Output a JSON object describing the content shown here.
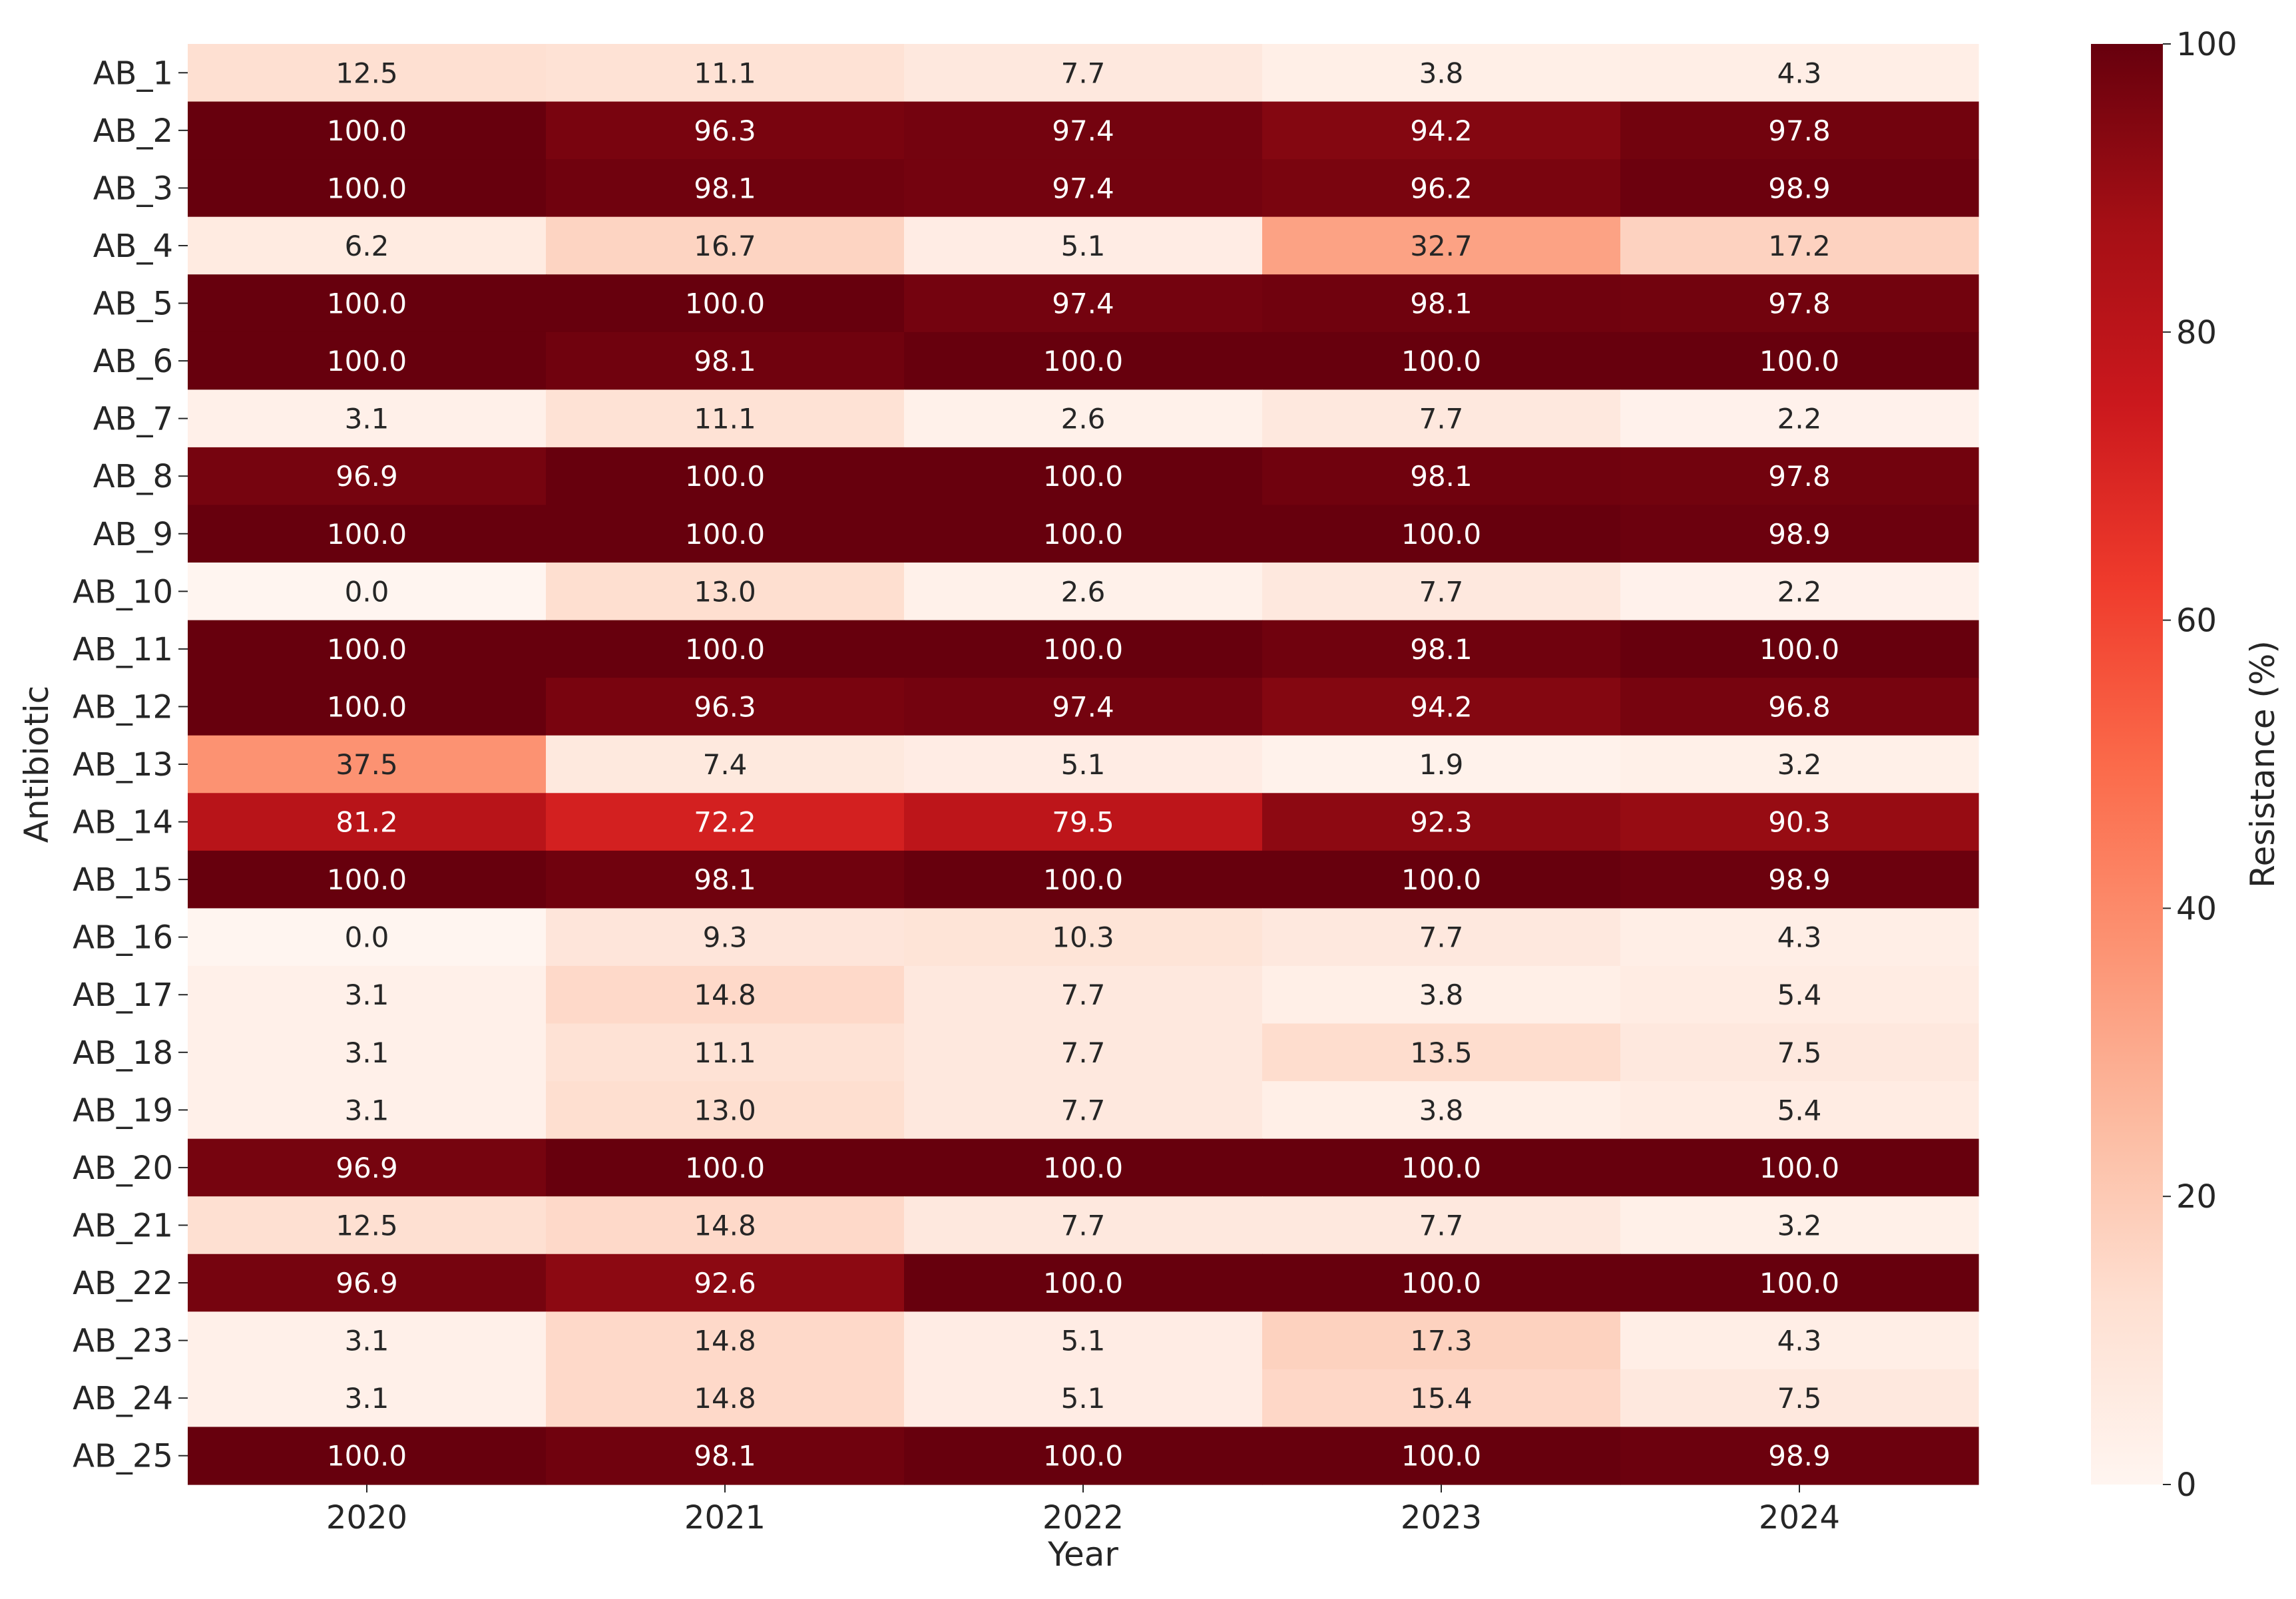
{
  "chart_data": {
    "type": "heatmap",
    "title": "",
    "xlabel": "Year",
    "ylabel": "Antibiotic",
    "x_categories": [
      "2020",
      "2021",
      "2022",
      "2023",
      "2024"
    ],
    "y_categories": [
      "AB_1",
      "AB_2",
      "AB_3",
      "AB_4",
      "AB_5",
      "AB_6",
      "AB_7",
      "AB_8",
      "AB_9",
      "AB_10",
      "AB_11",
      "AB_12",
      "AB_13",
      "AB_14",
      "AB_15",
      "AB_16",
      "AB_17",
      "AB_18",
      "AB_19",
      "AB_20",
      "AB_21",
      "AB_22",
      "AB_23",
      "AB_24",
      "AB_25"
    ],
    "values": [
      [
        12.5,
        11.1,
        7.7,
        3.8,
        4.3
      ],
      [
        100.0,
        96.3,
        97.4,
        94.2,
        97.8
      ],
      [
        100.0,
        98.1,
        97.4,
        96.2,
        98.9
      ],
      [
        6.2,
        16.7,
        5.1,
        32.7,
        17.2
      ],
      [
        100.0,
        100.0,
        97.4,
        98.1,
        97.8
      ],
      [
        100.0,
        98.1,
        100.0,
        100.0,
        100.0
      ],
      [
        3.1,
        11.1,
        2.6,
        7.7,
        2.2
      ],
      [
        96.9,
        100.0,
        100.0,
        98.1,
        97.8
      ],
      [
        100.0,
        100.0,
        100.0,
        100.0,
        98.9
      ],
      [
        0.0,
        13.0,
        2.6,
        7.7,
        2.2
      ],
      [
        100.0,
        100.0,
        100.0,
        98.1,
        100.0
      ],
      [
        100.0,
        96.3,
        97.4,
        94.2,
        96.8
      ],
      [
        37.5,
        7.4,
        5.1,
        1.9,
        3.2
      ],
      [
        81.2,
        72.2,
        79.5,
        92.3,
        90.3
      ],
      [
        100.0,
        98.1,
        100.0,
        100.0,
        98.9
      ],
      [
        0.0,
        9.3,
        10.3,
        7.7,
        4.3
      ],
      [
        3.1,
        14.8,
        7.7,
        3.8,
        5.4
      ],
      [
        3.1,
        11.1,
        7.7,
        13.5,
        7.5
      ],
      [
        3.1,
        13.0,
        7.7,
        3.8,
        5.4
      ],
      [
        96.9,
        100.0,
        100.0,
        100.0,
        100.0
      ],
      [
        12.5,
        14.8,
        7.7,
        7.7,
        3.2
      ],
      [
        96.9,
        92.6,
        100.0,
        100.0,
        100.0
      ],
      [
        3.1,
        14.8,
        5.1,
        17.3,
        4.3
      ],
      [
        3.1,
        14.8,
        5.1,
        15.4,
        7.5
      ],
      [
        100.0,
        98.1,
        100.0,
        100.0,
        98.9
      ]
    ],
    "value_format": "0.0",
    "colorbar": {
      "label": "Resistance (%)",
      "range": [
        0,
        100
      ],
      "ticks": [
        0,
        20,
        40,
        60,
        80,
        100
      ],
      "colormap": "Reds",
      "colors": [
        "#fff5f0",
        "#fee0d2",
        "#fcbba1",
        "#fc9272",
        "#fb6a4a",
        "#ef3b2c",
        "#cb181d",
        "#a50f15",
        "#67000d"
      ]
    },
    "grid": false
  }
}
